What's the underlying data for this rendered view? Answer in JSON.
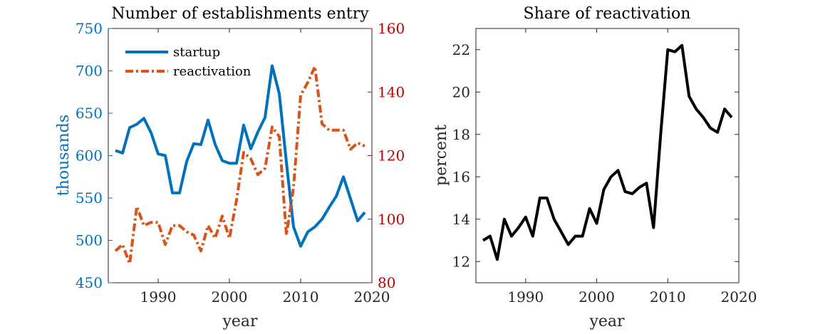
{
  "colors": {
    "startup": "#0072bd",
    "reactivation": "#d95319",
    "share": "#000000",
    "right_axis": "#c00000",
    "axis": "#262626"
  },
  "chart_data": [
    {
      "type": "line",
      "title": "Number of establishments entry",
      "xlabel": "year",
      "ylabel": "thousands",
      "ylabel_right": "",
      "xlim": [
        1983,
        2020
      ],
      "ylim": [
        450,
        750
      ],
      "ylim_right": [
        80,
        160
      ],
      "xticks": [
        1990,
        2000,
        2010,
        2020
      ],
      "yticks": [
        450,
        500,
        550,
        600,
        650,
        700,
        750
      ],
      "yticks_right": [
        80,
        100,
        120,
        140,
        160
      ],
      "grid": false,
      "legend_position": "top-left",
      "x": [
        1984,
        1985,
        1986,
        1987,
        1988,
        1989,
        1990,
        1991,
        1992,
        1993,
        1994,
        1995,
        1996,
        1997,
        1998,
        1999,
        2000,
        2001,
        2002,
        2003,
        2004,
        2005,
        2006,
        2007,
        2008,
        2009,
        2010,
        2011,
        2012,
        2013,
        2014,
        2015,
        2016,
        2017,
        2018,
        2019
      ],
      "series": [
        {
          "name": "startup",
          "axis": "left",
          "style": "solid",
          "values": [
            606,
            603,
            633,
            637,
            644,
            627,
            602,
            600,
            556,
            556,
            593,
            614,
            613,
            642,
            613,
            594,
            591,
            591,
            636,
            608,
            628,
            645,
            706,
            673,
            592,
            516,
            493,
            510,
            516,
            525,
            539,
            552,
            575,
            549,
            523,
            533
          ]
        },
        {
          "name": "reactivation",
          "axis": "right",
          "style": "dash-dot",
          "values": [
            90,
            92,
            86,
            104,
            98,
            99,
            99,
            92,
            98,
            98,
            96,
            95,
            90,
            98,
            94,
            101,
            94,
            106,
            121,
            119,
            114,
            116,
            129,
            126,
            95,
            110,
            139,
            143,
            148,
            130,
            128,
            128,
            128,
            122,
            124,
            123
          ]
        }
      ]
    },
    {
      "type": "line",
      "title": "Share of reactivation",
      "xlabel": "year",
      "ylabel": "percent",
      "xlim": [
        1983,
        2020
      ],
      "ylim": [
        11,
        23
      ],
      "xticks": [
        1990,
        2000,
        2010,
        2020
      ],
      "yticks": [
        12,
        14,
        16,
        18,
        20,
        22
      ],
      "grid": false,
      "x": [
        1984,
        1985,
        1986,
        1987,
        1988,
        1989,
        1990,
        1991,
        1992,
        1993,
        1994,
        1995,
        1996,
        1997,
        1998,
        1999,
        2000,
        2001,
        2002,
        2003,
        2004,
        2005,
        2006,
        2007,
        2008,
        2009,
        2010,
        2011,
        2012,
        2013,
        2014,
        2015,
        2016,
        2017,
        2018,
        2019
      ],
      "series": [
        {
          "name": "",
          "style": "solid",
          "values": [
            13.0,
            13.2,
            12.1,
            14.0,
            13.2,
            13.6,
            14.1,
            13.2,
            15.0,
            15.0,
            14.0,
            13.4,
            12.8,
            13.2,
            13.2,
            14.5,
            13.8,
            15.4,
            16.0,
            16.3,
            15.3,
            15.2,
            15.5,
            15.7,
            13.6,
            18.0,
            22.0,
            21.9,
            22.2,
            19.8,
            19.2,
            18.8,
            18.3,
            18.1,
            19.2,
            18.8
          ]
        }
      ]
    }
  ]
}
